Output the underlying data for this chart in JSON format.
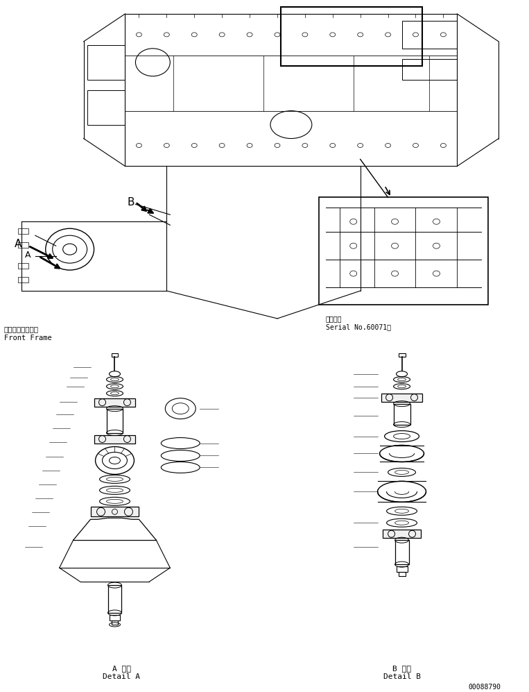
{
  "bg_color": "#ffffff",
  "line_color": "#000000",
  "fig_width": 7.63,
  "fig_height": 9.97,
  "dpi": 100,
  "label_front_frame_jp": "フロントフレーム",
  "label_front_frame_en": "Front Frame",
  "label_serial_jp": "適用号機",
  "label_serial_en": "Serial No.60071～",
  "label_detail_a_jp": "A 詳細",
  "label_detail_a_en": "Detail A",
  "label_detail_b_jp": "B 詳細",
  "label_detail_b_en": "Detail B",
  "label_a": "A",
  "label_b": "B",
  "part_number": "00088790"
}
